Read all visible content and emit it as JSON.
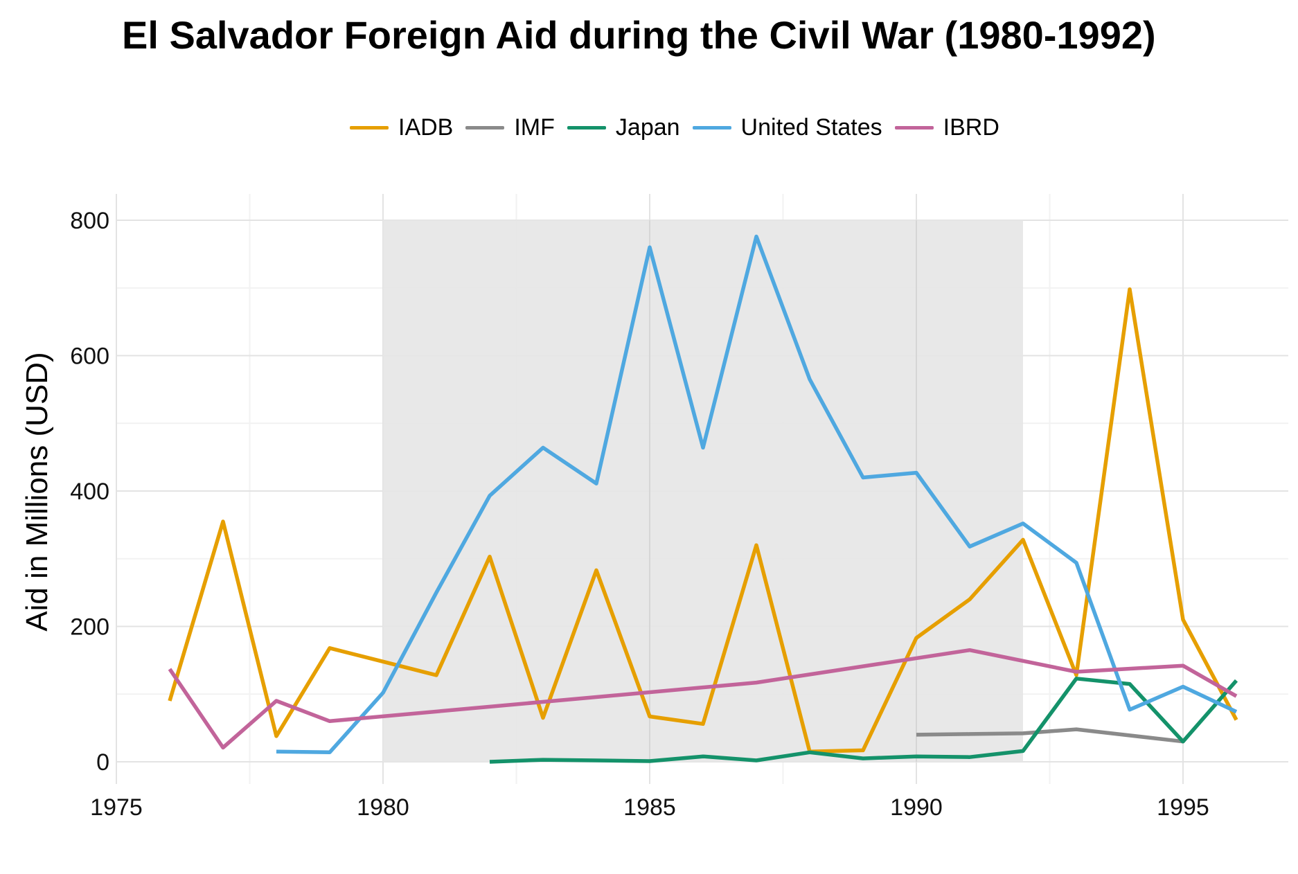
{
  "chart_data": {
    "type": "line",
    "title": "El Salvador Foreign Aid during the Civil War (1980-1992)",
    "xlabel": "",
    "ylabel": "Aid in Millions (USD)",
    "xlim": [
      1975,
      1997
    ],
    "ylim": [
      -30,
      840
    ],
    "x_ticks": [
      "1975",
      "1980",
      "1985",
      "1990",
      "1995"
    ],
    "y_ticks": [
      "0",
      "200",
      "400",
      "600",
      "800"
    ],
    "shaded_region": {
      "x_start": 1980,
      "x_end": 1992,
      "y_top": 800,
      "color": "#e5e5e5"
    },
    "legend_position": "top",
    "grid": true,
    "series": [
      {
        "name": "IADB",
        "color": "#E69F00",
        "x": [
          1976,
          1977,
          1978,
          1979,
          1980,
          1981,
          1982,
          1983,
          1984,
          1985,
          1986,
          1987,
          1988,
          1989,
          1990,
          1991,
          1992,
          1993,
          1994,
          1995,
          1996
        ],
        "values": [
          90,
          355,
          38,
          168,
          148,
          128,
          303,
          65,
          283,
          67,
          56,
          320,
          15,
          17,
          183,
          240,
          328,
          128,
          698,
          210,
          62
        ]
      },
      {
        "name": "IMF",
        "color": "#8A8A8A",
        "x": [
          1990,
          1991,
          1992,
          1993,
          1995
        ],
        "values": [
          40,
          41,
          42,
          48,
          30
        ]
      },
      {
        "name": "Japan",
        "color": "#14926A",
        "x": [
          1982,
          1983,
          1984,
          1985,
          1986,
          1987,
          1988,
          1989,
          1990,
          1991,
          1992,
          1993,
          1994,
          1995,
          1996
        ],
        "values": [
          0,
          3,
          2,
          1,
          8,
          2,
          14,
          5,
          8,
          7,
          16,
          123,
          115,
          30,
          120
        ]
      },
      {
        "name": "United States",
        "color": "#4FA8E0",
        "x": [
          1978,
          1979,
          1980,
          1981,
          1982,
          1983,
          1984,
          1985,
          1986,
          1987,
          1988,
          1989,
          1990,
          1991,
          1992,
          1993,
          1994,
          1995,
          1996
        ],
        "values": [
          15,
          14,
          102,
          250,
          393,
          464,
          411,
          760,
          464,
          776,
          565,
          420,
          427,
          318,
          352,
          294,
          77,
          111,
          74
        ]
      },
      {
        "name": "IBRD",
        "color": "#C2649A",
        "x": [
          1976,
          1977,
          1978,
          1979,
          1987,
          1991,
          1993,
          1995,
          1996
        ],
        "values": [
          137,
          21,
          90,
          60,
          117,
          165,
          133,
          142,
          97
        ]
      }
    ]
  }
}
